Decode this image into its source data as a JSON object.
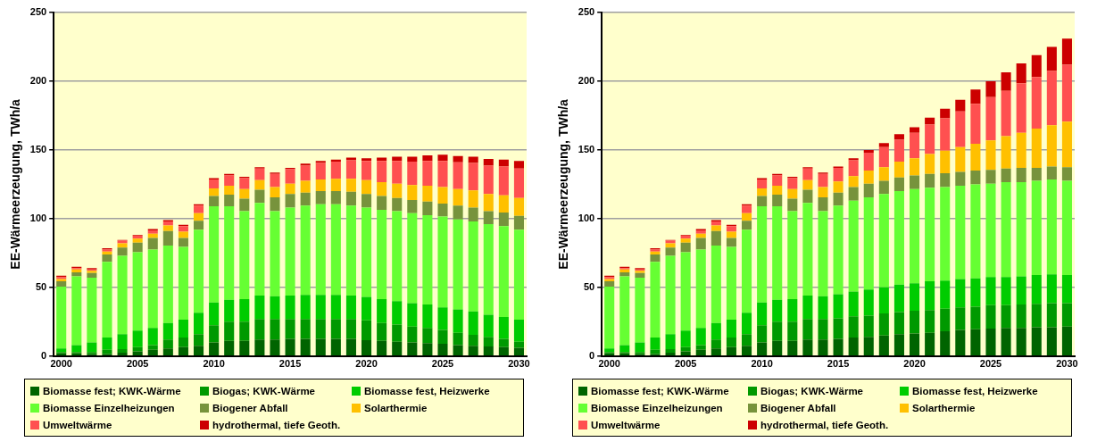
{
  "chart_data": [
    {
      "type": "bar",
      "stacked": true,
      "ylabel": "EE-Wärmeerzeugung, TWh/a",
      "categories": [
        "2000",
        null,
        null,
        null,
        null,
        "2005",
        null,
        null,
        null,
        null,
        "2010",
        null,
        null,
        null,
        null,
        "2015",
        null,
        null,
        null,
        null,
        "2020",
        null,
        null,
        null,
        null,
        "2025",
        null,
        null,
        null,
        null,
        "2030"
      ],
      "ylim": [
        0,
        250
      ],
      "yticks": [
        0,
        50,
        100,
        150,
        200,
        250
      ],
      "grid": "y",
      "legend": "bottom",
      "series": [
        {
          "name": "Biomasse fest; KWK-Wärme",
          "color": "#006400",
          "values": [
            2,
            2,
            1.5,
            1.5,
            2.5,
            3.5,
            4.5,
            5.5,
            6.5,
            7.5,
            10,
            11,
            11,
            12,
            12,
            12.5,
            12.5,
            12.5,
            12.5,
            12.5,
            11.5,
            11,
            10.5,
            10,
            9.5,
            9,
            8,
            7.5,
            7,
            6.5,
            6
          ]
        },
        {
          "name": "Biogas; KWK-Wärme",
          "color": "#009900",
          "values": [
            1,
            1,
            1.5,
            3,
            2.5,
            3,
            3.5,
            6.5,
            7,
            8.5,
            12.5,
            14,
            14,
            15,
            15,
            14.5,
            14.5,
            14.5,
            14.5,
            14.5,
            14.5,
            13,
            12.5,
            11.5,
            11,
            10,
            9,
            8,
            7,
            6,
            4.5
          ]
        },
        {
          "name": "Biomasse fest, Heizwerke",
          "color": "#00cc00",
          "values": [
            2.5,
            5,
            7,
            9,
            11,
            12,
            12.5,
            12,
            13,
            15.5,
            16.5,
            16,
            16.5,
            17,
            16.5,
            17,
            17.5,
            17.5,
            17.5,
            17,
            17,
            17.5,
            17,
            17,
            17,
            16.5,
            17,
            17,
            16,
            16,
            16
          ]
        },
        {
          "name": "Biomasse Einzelheizungen",
          "color": "#66ff33",
          "values": [
            45,
            50,
            47,
            55,
            57,
            57,
            57,
            56.5,
            53,
            60.5,
            70,
            68,
            64,
            67.5,
            62,
            64,
            65,
            66,
            66,
            65.5,
            65,
            65,
            65.5,
            65.5,
            65,
            66,
            65.5,
            65.5,
            66,
            66,
            65.5
          ]
        },
        {
          "name": "Biogener Abfall",
          "color": "#77933c",
          "values": [
            4,
            3,
            3.5,
            5.5,
            6,
            7,
            8.5,
            10.5,
            6.5,
            6.5,
            7.5,
            8.5,
            9,
            9.5,
            10,
            10,
            9.5,
            9.5,
            9.5,
            10,
            10,
            10,
            9.5,
            9.5,
            10,
            9.5,
            10,
            10,
            9.5,
            10,
            10
          ]
        },
        {
          "name": "Solarthermie",
          "color": "#ffc000",
          "values": [
            1.5,
            2,
            1.5,
            2,
            3,
            3,
            3,
            4,
            4.5,
            5.5,
            5.5,
            6.5,
            7,
            7,
            7.5,
            7.5,
            8.5,
            8.5,
            9,
            9.5,
            10,
            10,
            10.5,
            11,
            11.5,
            12,
            12,
            12.5,
            12.5,
            12.5,
            13
          ]
        },
        {
          "name": "Umweltwärme",
          "color": "#ff5050",
          "values": [
            1.5,
            1,
            1,
            1.5,
            2,
            2,
            2.5,
            3,
            4,
            5.5,
            6.5,
            7.5,
            8,
            8.5,
            9.5,
            10.5,
            11,
            12,
            12.5,
            13.5,
            14,
            15.5,
            16.5,
            17,
            18,
            19,
            19.5,
            20,
            20.5,
            21,
            21.5
          ]
        },
        {
          "name": "hydrothermal, tiefe Geoth.",
          "color": "#cc0000",
          "values": [
            1,
            1,
            1,
            1,
            0.5,
            0.5,
            1,
            1,
            1,
            1,
            1,
            1,
            1,
            1,
            1,
            1,
            1.5,
            1.5,
            1.5,
            2,
            2,
            2.5,
            3,
            3.5,
            4,
            4.5,
            4.5,
            4.5,
            5,
            5,
            5.5
          ]
        }
      ]
    },
    {
      "type": "bar",
      "stacked": true,
      "ylabel": "EE-Wärmeerzeugung, TWh/a",
      "categories": [
        "2000",
        null,
        null,
        null,
        null,
        "2005",
        null,
        null,
        null,
        null,
        "2010",
        null,
        null,
        null,
        null,
        "2015",
        null,
        null,
        null,
        null,
        "2020",
        null,
        null,
        null,
        null,
        "2025",
        null,
        null,
        null,
        null,
        "2030"
      ],
      "ylim": [
        0,
        250
      ],
      "yticks": [
        0,
        50,
        100,
        150,
        200,
        250
      ],
      "grid": "y",
      "legend": "bottom",
      "series": [
        {
          "name": "Biomasse fest; KWK-Wärme",
          "color": "#006400",
          "values": [
            2,
            2,
            1.5,
            1.5,
            2.5,
            3.5,
            4.5,
            5.5,
            6.5,
            7.5,
            10,
            11,
            11,
            12,
            12,
            12.5,
            13.5,
            14,
            15,
            16,
            16.5,
            17,
            18,
            19,
            19.5,
            20,
            20.5,
            20.5,
            21,
            21,
            21.5
          ]
        },
        {
          "name": "Biogas; KWK-Wärme",
          "color": "#009900",
          "values": [
            1,
            1,
            1.5,
            3,
            2.5,
            3,
            3.5,
            6.5,
            7,
            8.5,
            12.5,
            14,
            14,
            15,
            15,
            15,
            15.5,
            15.5,
            16,
            16,
            16.5,
            16.5,
            16.5,
            16.5,
            16.5,
            17,
            16.5,
            17,
            17,
            17.5,
            17
          ]
        },
        {
          "name": "Biomasse fest, Heizwerke",
          "color": "#00cc00",
          "values": [
            2.5,
            5,
            7,
            9,
            11,
            12,
            12.5,
            12,
            13,
            15.5,
            16.5,
            16,
            16.5,
            17,
            16.5,
            17.5,
            18,
            19,
            19,
            20,
            20,
            21,
            20.5,
            20.5,
            20.5,
            20.5,
            20.5,
            20.5,
            21,
            21,
            20.5
          ]
        },
        {
          "name": "Biomasse Einzelheizungen",
          "color": "#66ff33",
          "values": [
            45,
            50,
            47,
            55,
            57,
            57,
            57,
            56.5,
            53,
            60.5,
            70,
            68,
            64,
            67.5,
            62,
            64.5,
            66,
            67,
            68,
            68,
            68.5,
            68,
            68,
            68,
            68.5,
            68,
            69,
            68.5,
            68.5,
            69,
            68.5
          ]
        },
        {
          "name": "Biogener Abfall",
          "color": "#77933c",
          "values": [
            4,
            3,
            3.5,
            5.5,
            6,
            7,
            8.5,
            10.5,
            6.5,
            6.5,
            7.5,
            8.5,
            9,
            9.5,
            10,
            9.5,
            10,
            10,
            9.5,
            10,
            10,
            10,
            10,
            10,
            10,
            10,
            10,
            10.5,
            9.5,
            9.5,
            10
          ]
        },
        {
          "name": "Solarthermie",
          "color": "#ffc000",
          "values": [
            1.5,
            2,
            1.5,
            2,
            3,
            3,
            3,
            4,
            4.5,
            5.5,
            5.5,
            6.5,
            7,
            7,
            7.5,
            8,
            8,
            9.5,
            10,
            11.5,
            12.5,
            14.5,
            16.5,
            18,
            19.5,
            21.5,
            23.5,
            25.5,
            28.5,
            30,
            33
          ]
        },
        {
          "name": "Umweltwärme",
          "color": "#ff5050",
          "values": [
            1.5,
            1,
            1,
            1.5,
            2,
            2,
            2.5,
            3,
            4,
            5.5,
            6.5,
            7.5,
            8,
            8.5,
            9.5,
            10,
            11.5,
            13,
            14.5,
            16,
            18.5,
            21.5,
            23.5,
            26,
            29,
            31.5,
            33,
            36,
            37.5,
            39.5,
            41.5
          ]
        },
        {
          "name": "hydrothermal, tiefe Geoth.",
          "color": "#cc0000",
          "values": [
            1,
            1,
            1,
            1,
            0.5,
            0.5,
            1,
            1,
            1,
            1,
            1,
            1,
            1,
            1,
            1,
            1,
            1.5,
            2,
            3,
            4,
            4,
            5,
            7,
            8.5,
            10.5,
            11.5,
            13.5,
            14.5,
            16,
            17.5,
            19
          ]
        }
      ]
    }
  ]
}
